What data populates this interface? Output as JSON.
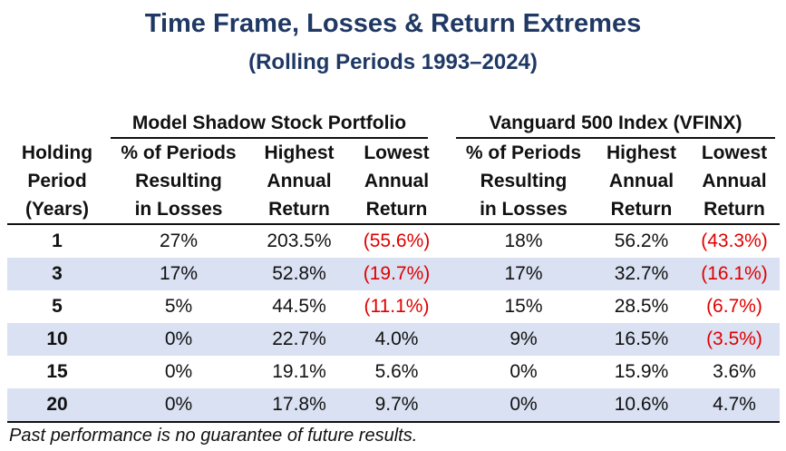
{
  "title": "Time Frame, Losses & Return Extremes",
  "subtitle": "(Rolling Periods 1993–2024)",
  "groups": [
    "Model Shadow Stock Portfolio",
    "Vanguard 500 Index (VFINX)"
  ],
  "headers": {
    "period": [
      "Holding",
      "Period",
      "(Years)"
    ],
    "pct_losses": [
      "% of Periods",
      "Resulting",
      "in Losses"
    ],
    "highest": [
      "Highest",
      "Annual",
      "Return"
    ],
    "lowest": [
      "Lowest",
      "Annual",
      "Return"
    ]
  },
  "rows": [
    {
      "period": "1",
      "mss_pct": "27%",
      "mss_high": "203.5%",
      "mss_low": "(55.6%)",
      "mss_low_neg": true,
      "vf_pct": "18%",
      "vf_high": "56.2%",
      "vf_low": "(43.3%)",
      "vf_low_neg": true
    },
    {
      "period": "3",
      "mss_pct": "17%",
      "mss_high": "52.8%",
      "mss_low": "(19.7%)",
      "mss_low_neg": true,
      "vf_pct": "17%",
      "vf_high": "32.7%",
      "vf_low": "(16.1%)",
      "vf_low_neg": true
    },
    {
      "period": "5",
      "mss_pct": "5%",
      "mss_high": "44.5%",
      "mss_low": "(11.1%)",
      "mss_low_neg": true,
      "vf_pct": "15%",
      "vf_high": "28.5%",
      "vf_low": "(6.7%)",
      "vf_low_neg": true
    },
    {
      "period": "10",
      "mss_pct": "0%",
      "mss_high": "22.7%",
      "mss_low": "4.0%",
      "mss_low_neg": false,
      "vf_pct": "9%",
      "vf_high": "16.5%",
      "vf_low": "(3.5%)",
      "vf_low_neg": true
    },
    {
      "period": "15",
      "mss_pct": "0%",
      "mss_high": "19.1%",
      "mss_low": "5.6%",
      "mss_low_neg": false,
      "vf_pct": "0%",
      "vf_high": "15.9%",
      "vf_low": "3.6%",
      "vf_low_neg": false
    },
    {
      "period": "20",
      "mss_pct": "0%",
      "mss_high": "17.8%",
      "mss_low": "9.7%",
      "mss_low_neg": false,
      "vf_pct": "0%",
      "vf_high": "10.6%",
      "vf_low": "4.7%",
      "vf_low_neg": false
    }
  ],
  "footnote": "Past performance is no guarantee of future results.",
  "colors": {
    "title": "#1F3864",
    "shade": "#D9E1F2",
    "negative": "#E00000"
  }
}
